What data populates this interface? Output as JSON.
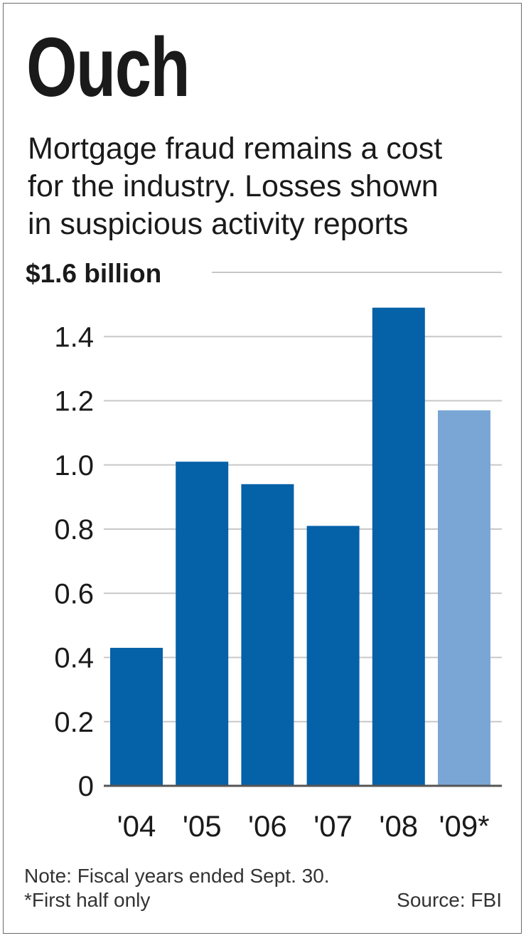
{
  "title": "Ouch",
  "subtitle_lines": [
    "Mortgage fraud remains a cost",
    "for the industry. Losses shown",
    "in suspicious activity reports"
  ],
  "notes": {
    "line1": "Note: Fiscal years ended Sept. 30.",
    "line2": "*First half only",
    "source": "Source: FBI"
  },
  "colors": {
    "bar_full_year": "#0561a8",
    "bar_partial_year": "#7aa6d6",
    "gridline": "#c8c8c8",
    "text": "#1a1a1a"
  },
  "chart_data": {
    "type": "bar",
    "title": "Ouch",
    "unit_label": "$1.6 billion",
    "categories": [
      "'04",
      "'05",
      "'06",
      "'07",
      "'08",
      "'09*"
    ],
    "values": [
      0.43,
      1.01,
      0.94,
      0.81,
      1.49,
      1.17
    ],
    "partial": [
      false,
      false,
      false,
      false,
      false,
      true
    ],
    "ylim": [
      0,
      1.6
    ],
    "yticks": [
      0,
      0.2,
      0.4,
      0.6,
      0.8,
      1.0,
      1.2,
      1.4,
      1.6
    ],
    "ytick_labels": [
      "0",
      "0.2",
      "0.4",
      "0.6",
      "0.8",
      "1.0",
      "1.2",
      "1.4",
      "$1.6 billion"
    ],
    "grid": true,
    "xlabel": "",
    "ylabel": ""
  }
}
